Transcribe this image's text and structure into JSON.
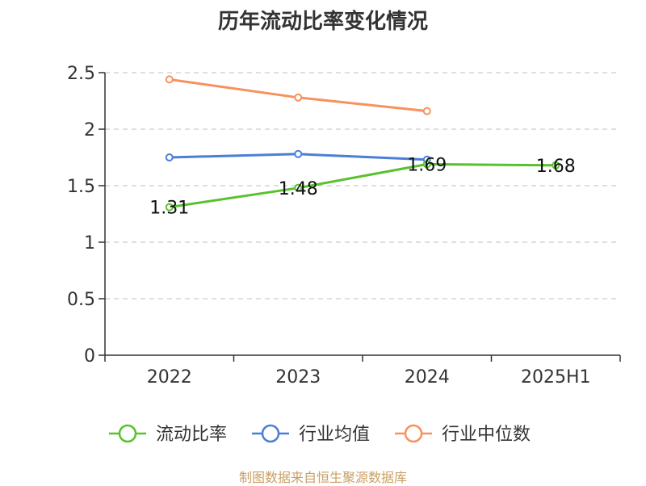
{
  "chart_data": {
    "type": "line",
    "title": "历年流动比率变化情况",
    "categories": [
      "2022",
      "2023",
      "2024",
      "2025H1"
    ],
    "ylim": [
      0,
      2.5
    ],
    "yticks": [
      "0",
      "0.5",
      "1",
      "1.5",
      "2",
      "2.5"
    ],
    "ytick_values": [
      0,
      0.5,
      1,
      1.5,
      2,
      2.5
    ],
    "grid": true,
    "legend_position": "bottom",
    "series": [
      {
        "name": "流动比率",
        "color": "#5ac12e",
        "values": [
          1.31,
          1.48,
          1.69,
          1.68
        ],
        "labels": [
          "1.31",
          "1.48",
          "1.69",
          "1.68"
        ]
      },
      {
        "name": "行业均值",
        "color": "#4a7fd8",
        "values": [
          1.75,
          1.78,
          1.73,
          null
        ]
      },
      {
        "name": "行业中位数",
        "color": "#f7915e",
        "values": [
          2.44,
          2.28,
          2.16,
          null
        ]
      }
    ],
    "source": "制图数据来自恒生聚源数据库"
  }
}
